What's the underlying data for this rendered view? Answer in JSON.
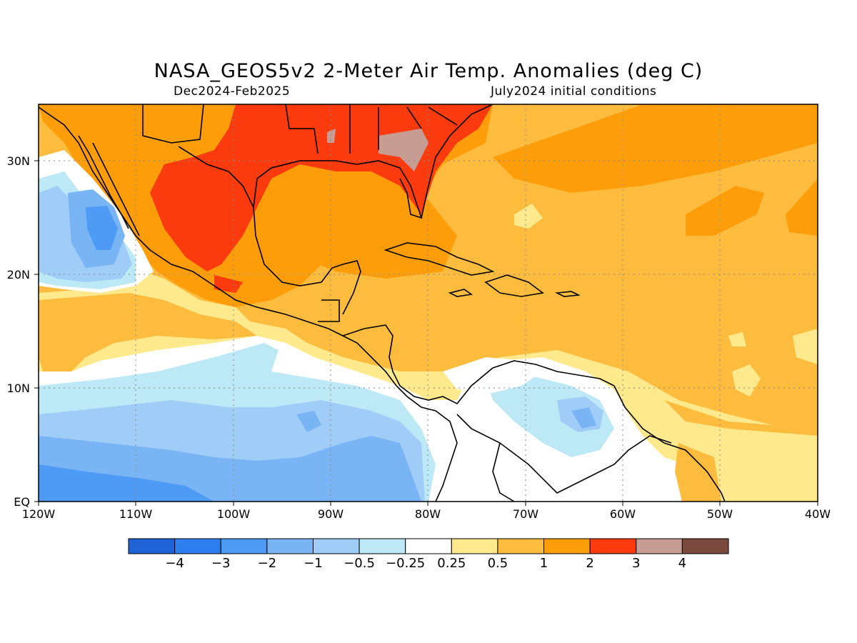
{
  "title": "NASA_GEOS5v2 2-Meter Air Temp. Anomalies (deg C)",
  "subtitle_left": "Dec2024-Feb2025",
  "subtitle_right": "July2024 initial conditions",
  "map": {
    "lon_range": [
      -120,
      -40
    ],
    "lat_range": [
      0,
      35
    ],
    "x_ticks": [
      "120W",
      "110W",
      "100W",
      "90W",
      "80W",
      "70W",
      "60W",
      "50W",
      "40W"
    ],
    "y_ticks": [
      "EQ",
      "10N",
      "20N",
      "30N"
    ],
    "grid": "dotted"
  },
  "colorbar": {
    "colors": [
      "#1f63d6",
      "#2f7ef0",
      "#4d9bf5",
      "#79b4f5",
      "#9fcdf8",
      "#bde9f7",
      "#ffffff",
      "#fee98d",
      "#fdbc3d",
      "#fd9d0a",
      "#fb3a0e",
      "#c79d93",
      "#7a4a3f"
    ],
    "labels": [
      "-4",
      "-3",
      "-2",
      "-1",
      "-0.5",
      "-0.25",
      "0.25",
      "0.5",
      "1",
      "2",
      "3",
      "4"
    ]
  }
}
